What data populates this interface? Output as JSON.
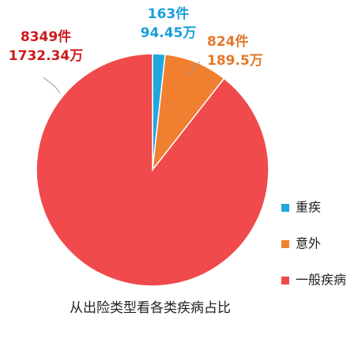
{
  "chart_data": {
    "type": "pie",
    "title": "从出险类型看各类疾病占比",
    "categories": [
      "重疾",
      "意外",
      "一般疾病"
    ],
    "values": [
      163,
      824,
      8349
    ],
    "value_labels": [
      "163件",
      "824件",
      "8349件"
    ],
    "amounts": [
      94.45,
      189.5,
      1732.34
    ],
    "amount_labels": [
      "94.45万",
      "189.5万",
      "1732.34万"
    ],
    "colors": [
      "#1fa8e0",
      "#f07f30",
      "#f04a4c"
    ],
    "label_colors": [
      "#1a9fd6",
      "#e2782a",
      "#cc1a1e"
    ]
  }
}
